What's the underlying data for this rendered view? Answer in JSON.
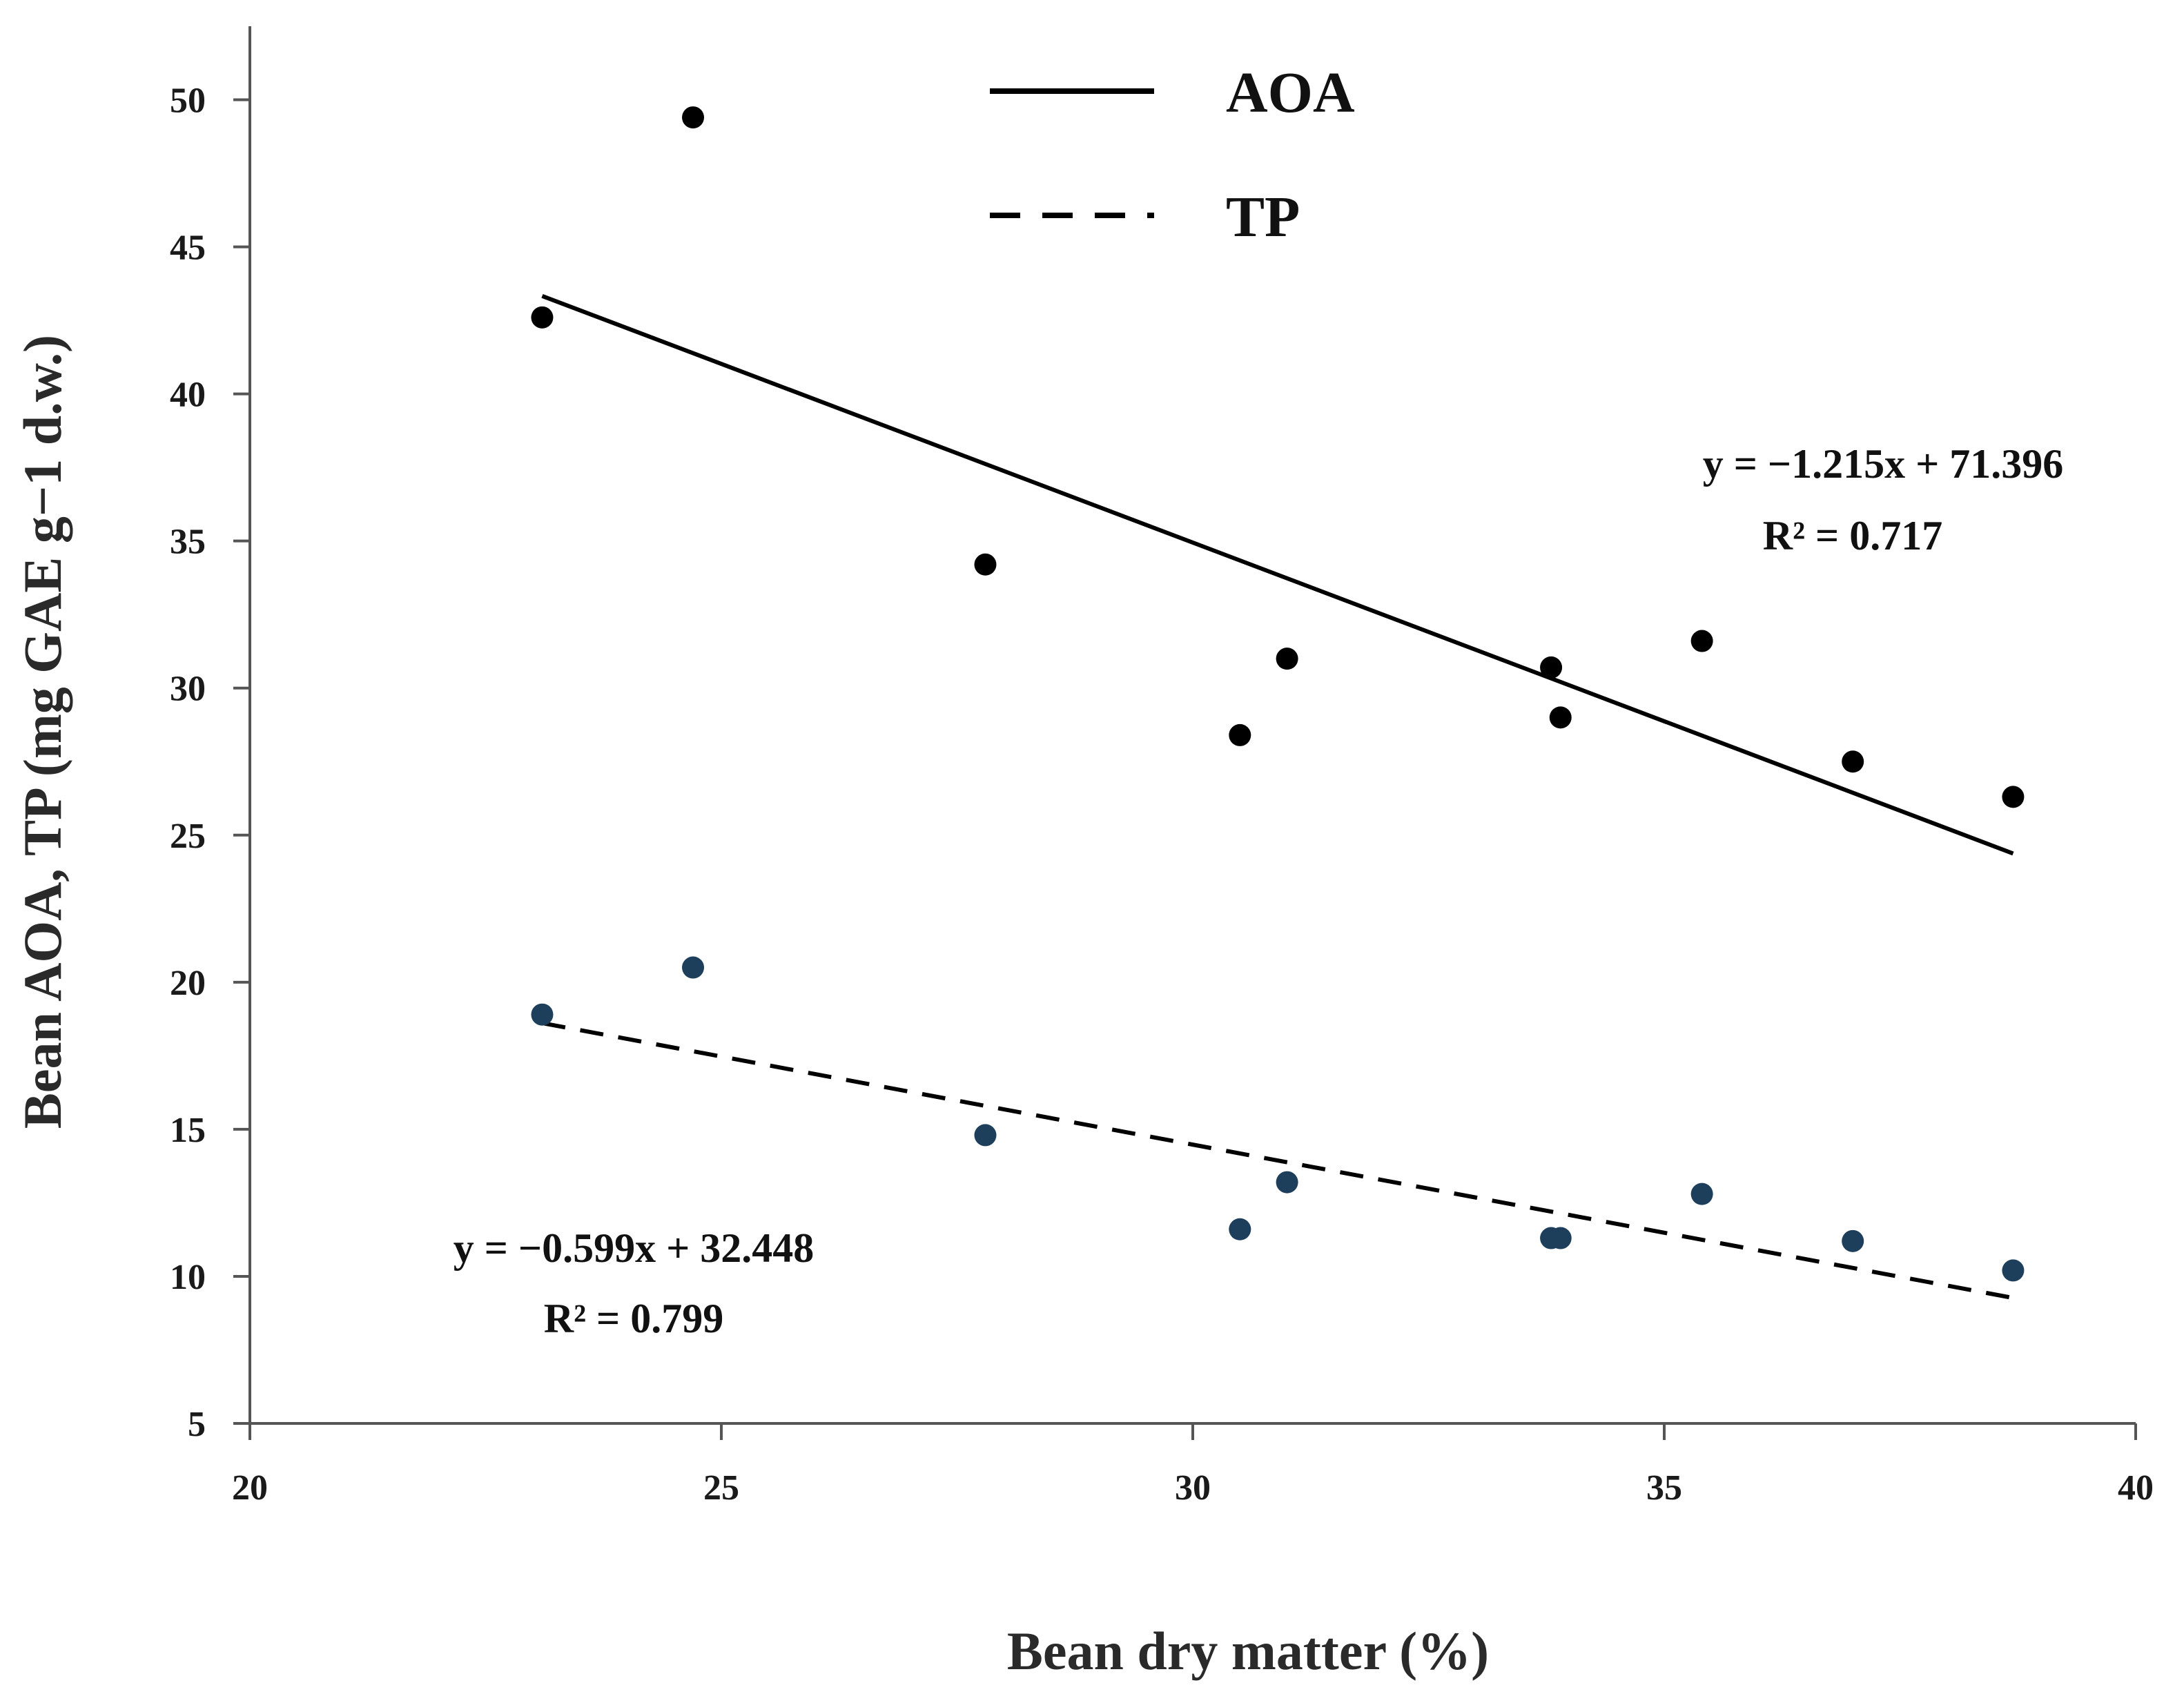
{
  "chart_data": {
    "type": "scatter",
    "title": "",
    "xlabel": "Bean dry matter (%)",
    "ylabel": "Bean AOA, TP (mg GAE g−1 d.w.)",
    "xlim": [
      20,
      40
    ],
    "ylim": [
      5,
      52.5
    ],
    "xticks": [
      20,
      25,
      30,
      35,
      40
    ],
    "yticks": [
      5,
      10,
      15,
      20,
      25,
      30,
      35,
      40,
      45,
      50
    ],
    "grid": false,
    "legend_position": "top-center",
    "series": [
      {
        "name": "AOA",
        "line_style": "solid",
        "marker_color": "#000000",
        "x": [
          23.1,
          24.7,
          27.8,
          30.5,
          31.0,
          33.8,
          33.9,
          35.4,
          37.0,
          38.7
        ],
        "y": [
          42.6,
          49.4,
          34.2,
          28.4,
          31.0,
          30.7,
          29.0,
          31.6,
          27.5,
          26.3
        ],
        "trendline": {
          "slope": -1.215,
          "intercept": 71.396,
          "x_range": [
            23.1,
            38.7
          ],
          "equation": "y = −1.215x + 71.396",
          "r2": "R² = 0.717"
        }
      },
      {
        "name": "TP",
        "line_style": "dashed",
        "marker_color": "#1d3f5c",
        "x": [
          23.1,
          24.7,
          27.8,
          30.5,
          31.0,
          33.8,
          33.9,
          35.4,
          37.0,
          38.7
        ],
        "y": [
          18.9,
          20.5,
          14.8,
          11.6,
          13.2,
          11.3,
          11.3,
          12.8,
          11.2,
          10.2
        ],
        "trendline": {
          "slope": -0.599,
          "intercept": 32.448,
          "x_range": [
            23.1,
            38.7
          ],
          "equation": "y = −0.599x + 32.448",
          "r2": "R² =  0.799"
        }
      }
    ]
  }
}
